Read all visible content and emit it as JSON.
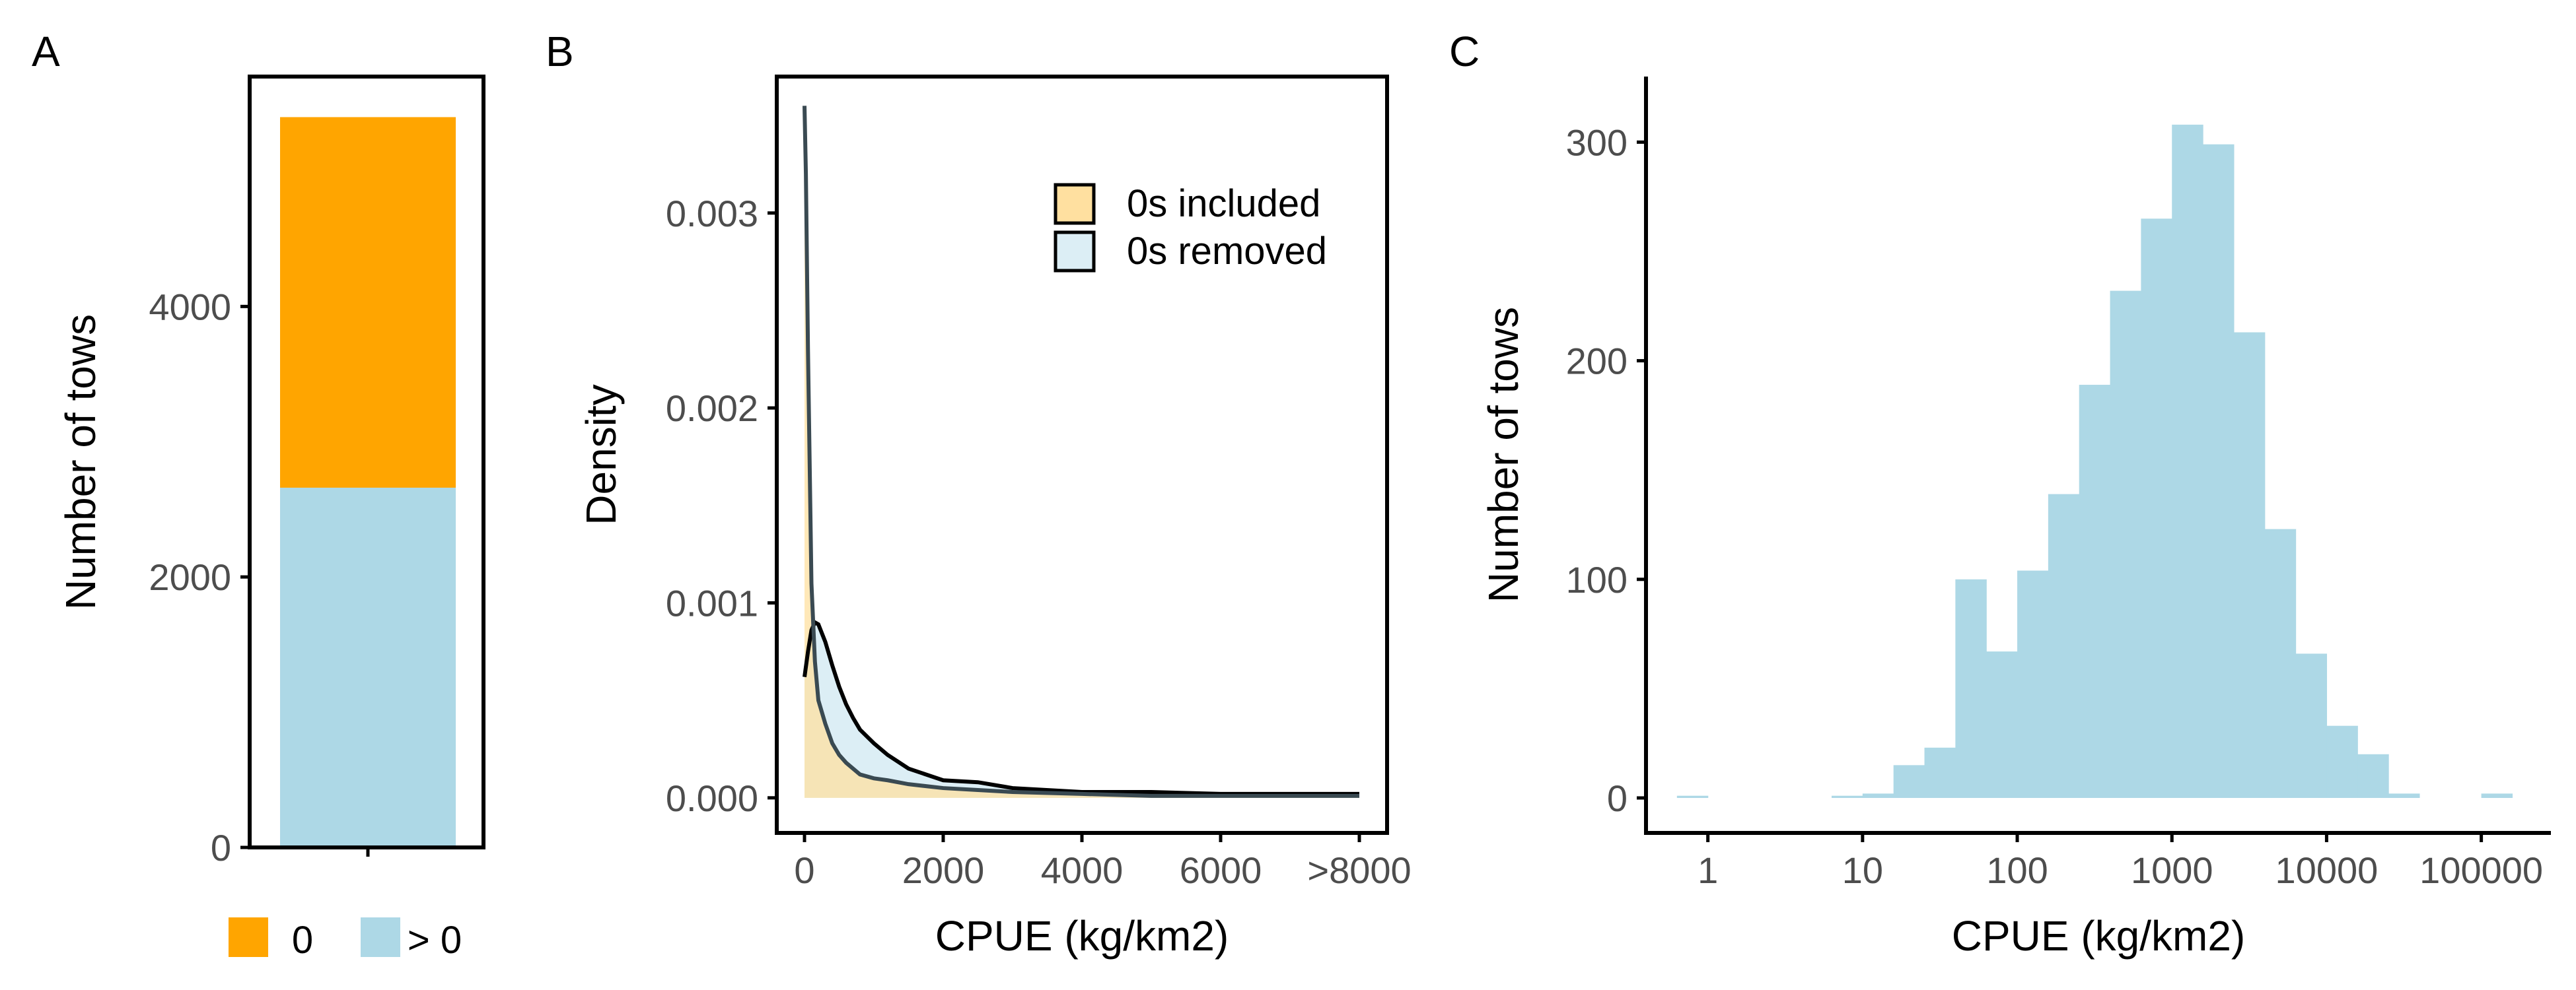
{
  "colors": {
    "zero": "#FFA500",
    "positive": "#ADD8E6",
    "axis": "#000000",
    "tick_text": "#4d4d4d",
    "density_incl_fill": "#FFE0A0",
    "density_rem_fill": "#DCEEF5"
  },
  "chart_data": [
    {
      "panel": "A",
      "type": "bar",
      "stacked": true,
      "categories": [
        ""
      ],
      "ylabel": "Number of tows",
      "xlabel": "",
      "ylim": [
        0,
        5700
      ],
      "yticks": [
        0,
        2000,
        4000
      ],
      "ytick_labels": [
        "0",
        "2000",
        "4000"
      ],
      "series": [
        {
          "name": "> 0",
          "color_key": "positive",
          "values": [
            2660
          ]
        },
        {
          "name": "0",
          "color_key": "zero",
          "values": [
            2740
          ]
        }
      ],
      "legend": {
        "placement": "bottom",
        "items": [
          {
            "label": "0",
            "color_key": "zero"
          },
          {
            "label": "> 0",
            "color_key": "positive"
          }
        ]
      }
    },
    {
      "panel": "B",
      "type": "area",
      "xlabel": "CPUE (kg/km2)",
      "ylabel": "Density",
      "xlim": [
        -400,
        8400
      ],
      "ylim": [
        -0.00018,
        0.0037
      ],
      "xticks": [
        0,
        2000,
        4000,
        6000,
        8000
      ],
      "xtick_labels": [
        "0",
        "2000",
        "4000",
        "6000",
        ">8000"
      ],
      "yticks": [
        0,
        0.001,
        0.002,
        0.003
      ],
      "ytick_labels": [
        "0.000",
        "0.001",
        "0.002",
        "0.003"
      ],
      "legend": {
        "placement": "top-right",
        "items": [
          {
            "label": "0s included",
            "color_key": "density_incl_fill"
          },
          {
            "label": "0s removed",
            "color_key": "density_rem_fill"
          }
        ]
      },
      "series": [
        {
          "name": "0s included",
          "x": [
            0,
            20,
            50,
            100,
            150,
            200,
            300,
            400,
            500,
            600,
            700,
            800,
            1000,
            1200,
            1500,
            2000,
            2500,
            3000,
            4000,
            5000,
            6000,
            7000,
            8000
          ],
          "y": [
            0.00355,
            0.0032,
            0.0023,
            0.0011,
            0.0007,
            0.0005,
            0.00038,
            0.00028,
            0.00022,
            0.00018,
            0.00015,
            0.00012,
            0.0001,
            9e-05,
            7e-05,
            5e-05,
            4e-05,
            3e-05,
            2e-05,
            1e-05,
            1e-05,
            1e-05,
            1e-05
          ]
        },
        {
          "name": "0s removed",
          "x": [
            0,
            50,
            100,
            150,
            200,
            300,
            400,
            500,
            600,
            700,
            800,
            1000,
            1200,
            1500,
            2000,
            2500,
            3000,
            4000,
            5000,
            6000,
            7000,
            8000
          ],
          "y": [
            0.00062,
            0.00075,
            0.00086,
            0.0009,
            0.00089,
            0.0008,
            0.00068,
            0.00057,
            0.00048,
            0.00041,
            0.00035,
            0.00028,
            0.00022,
            0.00015,
            9e-05,
            8e-05,
            5e-05,
            3e-05,
            3e-05,
            2e-05,
            2e-05,
            2e-05
          ]
        }
      ]
    },
    {
      "panel": "C",
      "type": "bar",
      "histogram": true,
      "xscale": "log10",
      "xlabel": "CPUE (kg/km2)",
      "ylabel": "Number of tows",
      "xlim_log10": [
        -0.4,
        5.45
      ],
      "ylim": [
        -16,
        330
      ],
      "xticks": [
        1,
        10,
        100,
        1000,
        10000,
        100000
      ],
      "xtick_labels": [
        "1",
        "10",
        "100",
        "1000",
        "10000",
        "100000"
      ],
      "yticks": [
        0,
        100,
        200,
        300
      ],
      "ytick_labels": [
        "0",
        "100",
        "200",
        "300"
      ],
      "bin_width_log10": 0.2,
      "bins_start_log10": [
        -0.2,
        0.8,
        1.0,
        1.2,
        1.4,
        1.6,
        1.8,
        2.0,
        2.2,
        2.4,
        2.6,
        2.8,
        3.0,
        3.2,
        3.4,
        3.6,
        3.8,
        4.0,
        4.2,
        4.4,
        5.0
      ],
      "counts": [
        1,
        1,
        2,
        15,
        23,
        100,
        67,
        104,
        139,
        189,
        232,
        265,
        308,
        299,
        213,
        123,
        66,
        33,
        20,
        2,
        2
      ]
    }
  ],
  "panel_labels": [
    "A",
    "B",
    "C"
  ]
}
